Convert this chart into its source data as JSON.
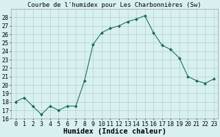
{
  "x": [
    0,
    1,
    2,
    3,
    4,
    5,
    6,
    7,
    8,
    9,
    10,
    11,
    12,
    13,
    14,
    15,
    16,
    17,
    18,
    19,
    20,
    21,
    22,
    23
  ],
  "y": [
    18.0,
    18.5,
    17.5,
    16.5,
    17.5,
    17.0,
    17.5,
    17.5,
    20.5,
    24.8,
    26.2,
    26.7,
    27.0,
    27.5,
    27.8,
    28.2,
    26.2,
    24.7,
    24.2,
    23.2,
    21.0,
    20.5,
    20.2,
    20.7
  ],
  "line_color": "#1a6b5a",
  "marker": "D",
  "marker_size": 2.0,
  "bg_color": "#d8f0f0",
  "grid_color": "#b0d0d0",
  "title": "Courbe de l'humidex pour Les Charbonnières (Sw)",
  "xlabel": "Humidex (Indice chaleur)",
  "xlim": [
    -0.5,
    23.5
  ],
  "ylim": [
    16,
    29
  ],
  "yticks": [
    16,
    17,
    18,
    19,
    20,
    21,
    22,
    23,
    24,
    25,
    26,
    27,
    28
  ],
  "xtick_labels": [
    "0",
    "1",
    "2",
    "3",
    "4",
    "5",
    "6",
    "7",
    "8",
    "9",
    "10",
    "11",
    "12",
    "13",
    "14",
    "15",
    "16",
    "17",
    "18",
    "19",
    "20",
    "21",
    "22",
    "23"
  ],
  "title_fontsize": 6.5,
  "xlabel_fontsize": 7.5,
  "tick_fontsize": 6.0
}
